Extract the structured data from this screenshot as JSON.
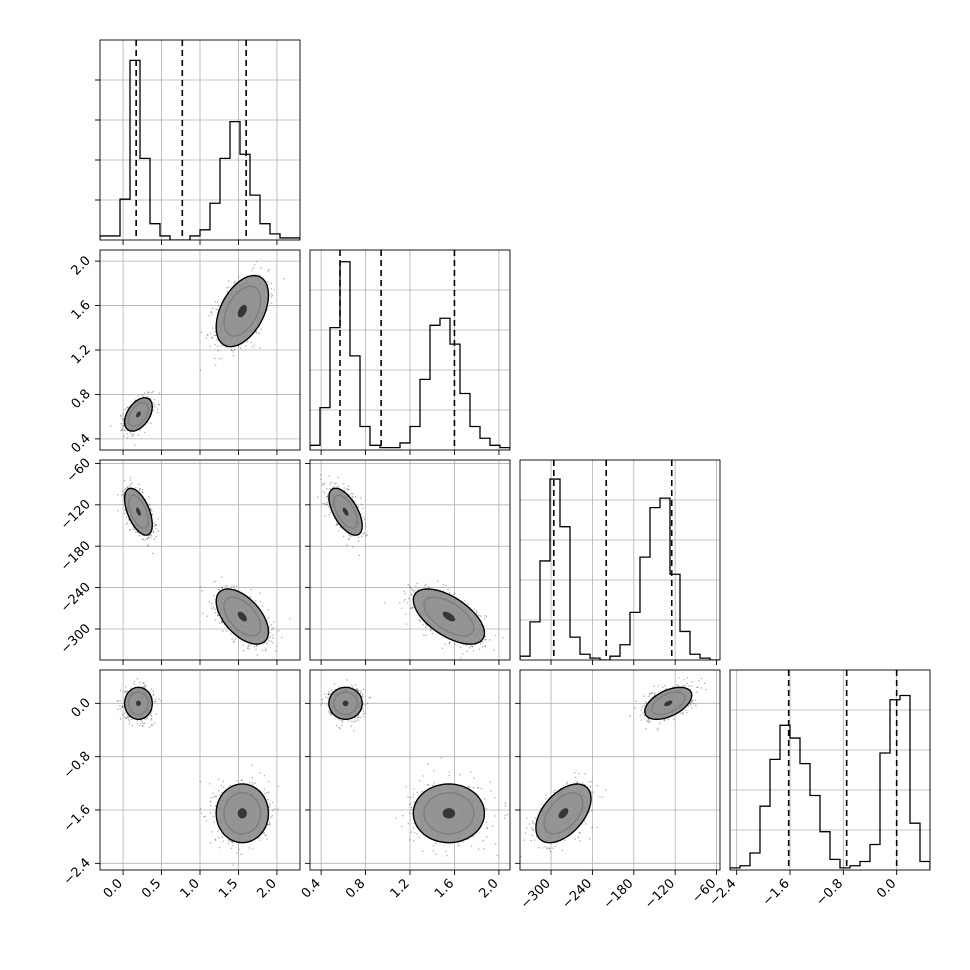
{
  "chart_data": {
    "type": "scatter",
    "title": "",
    "layout": "corner",
    "grid": true,
    "parameters": [
      {
        "range": [
          -0.3,
          2.3
        ],
        "ticks": [
          0.0,
          0.5,
          1.0,
          1.5,
          2.0
        ],
        "tick_labels": [
          "0.0",
          "0.5",
          "1.0",
          "1.5",
          "2.0"
        ]
      },
      {
        "range": [
          0.3,
          2.1
        ],
        "ticks": [
          0.4,
          0.8,
          1.2,
          1.6,
          2.0
        ],
        "tick_labels": [
          "0.4",
          "0.8",
          "1.2",
          "1.6",
          "2.0"
        ]
      },
      {
        "range": [
          -345,
          -55
        ],
        "ticks": [
          -300,
          -240,
          -180,
          -120,
          -60
        ],
        "tick_labels": [
          "−300",
          "−240",
          "−180",
          "−120",
          "−60"
        ]
      },
      {
        "range": [
          -2.5,
          0.5
        ],
        "ticks": [
          -2.4,
          -1.6,
          -0.8,
          0.0
        ],
        "tick_labels": [
          "−2.4",
          "−1.6",
          "−0.8",
          "0.0"
        ]
      }
    ],
    "histograms": [
      {
        "bins": [
          [
            -0.3,
            -0.17
          ],
          [
            -0.17,
            -0.04
          ],
          [
            -0.04,
            0.09
          ],
          [
            0.09,
            0.22
          ],
          [
            0.22,
            0.35
          ],
          [
            0.35,
            0.48
          ],
          [
            0.48,
            0.61
          ],
          [
            0.61,
            0.74
          ],
          [
            0.74,
            0.87
          ],
          [
            0.87,
            1.0
          ],
          [
            1.0,
            1.13
          ],
          [
            1.13,
            1.26
          ],
          [
            1.26,
            1.39
          ],
          [
            1.39,
            1.52
          ],
          [
            1.52,
            1.65
          ],
          [
            1.65,
            1.78
          ],
          [
            1.78,
            1.91
          ],
          [
            1.91,
            2.04
          ],
          [
            2.04,
            2.17
          ],
          [
            2.17,
            2.3
          ]
        ],
        "counts": [
          2,
          2,
          20,
          88,
          40,
          8,
          2,
          0,
          0,
          2,
          5,
          18,
          40,
          58,
          42,
          22,
          8,
          3,
          1,
          1
        ],
        "ymax": 98,
        "quantiles": [
          0.17,
          0.77,
          1.6
        ]
      },
      {
        "bins": [
          [
            0.3,
            0.39
          ],
          [
            0.39,
            0.48
          ],
          [
            0.48,
            0.57
          ],
          [
            0.57,
            0.66
          ],
          [
            0.66,
            0.75
          ],
          [
            0.75,
            0.84
          ],
          [
            0.84,
            0.93
          ],
          [
            0.93,
            1.02
          ],
          [
            1.02,
            1.11
          ],
          [
            1.11,
            1.2
          ],
          [
            1.2,
            1.29
          ],
          [
            1.29,
            1.38
          ],
          [
            1.38,
            1.47
          ],
          [
            1.47,
            1.56
          ],
          [
            1.56,
            1.65
          ],
          [
            1.65,
            1.74
          ],
          [
            1.74,
            1.83
          ],
          [
            1.83,
            1.92
          ],
          [
            1.92,
            2.01
          ],
          [
            2.01,
            2.1
          ]
        ],
        "counts": [
          2,
          18,
          52,
          80,
          40,
          10,
          2,
          1,
          1,
          3,
          10,
          30,
          53,
          56,
          45,
          24,
          10,
          5,
          2,
          1
        ],
        "ymax": 85,
        "quantiles": [
          0.57,
          0.94,
          1.6
        ]
      },
      {
        "bins": [
          [
            -345,
            -330.5
          ],
          [
            -330.5,
            -316
          ],
          [
            -316,
            -301.5
          ],
          [
            -301.5,
            -287
          ],
          [
            -287,
            -272.5
          ],
          [
            -272.5,
            -258
          ],
          [
            -258,
            -243.5
          ],
          [
            -243.5,
            -229
          ],
          [
            -229,
            -214.5
          ],
          [
            -214.5,
            -200
          ],
          [
            -200,
            -185.5
          ],
          [
            -185.5,
            -171
          ],
          [
            -171,
            -156.5
          ],
          [
            -156.5,
            -142
          ],
          [
            -142,
            -127.5
          ],
          [
            -127.5,
            -113
          ],
          [
            -113,
            -98.5
          ],
          [
            -98.5,
            -84
          ],
          [
            -84,
            -69.5
          ],
          [
            -69.5,
            -55
          ]
        ],
        "counts": [
          2,
          20,
          52,
          95,
          70,
          12,
          3,
          1,
          0,
          2,
          8,
          25,
          54,
          80,
          85,
          45,
          15,
          3,
          1,
          0
        ],
        "ymax": 105,
        "quantiles": [
          -296,
          -220,
          -125
        ]
      },
      {
        "bins": [
          [
            -2.5,
            -2.35
          ],
          [
            -2.35,
            -2.2
          ],
          [
            -2.2,
            -2.05
          ],
          [
            -2.05,
            -1.9
          ],
          [
            -1.9,
            -1.75
          ],
          [
            -1.75,
            -1.6
          ],
          [
            -1.6,
            -1.45
          ],
          [
            -1.45,
            -1.3
          ],
          [
            -1.3,
            -1.15
          ],
          [
            -1.15,
            -1.0
          ],
          [
            -1.0,
            -0.85
          ],
          [
            -0.85,
            -0.7
          ],
          [
            -0.7,
            -0.55
          ],
          [
            -0.55,
            -0.4
          ],
          [
            -0.4,
            -0.25
          ],
          [
            -0.25,
            -0.1
          ],
          [
            -0.1,
            0.05
          ],
          [
            0.05,
            0.2
          ],
          [
            0.2,
            0.35
          ],
          [
            0.35,
            0.5
          ]
        ],
        "counts": [
          1,
          2,
          8,
          30,
          52,
          68,
          62,
          50,
          35,
          18,
          5,
          1,
          2,
          4,
          12,
          55,
          80,
          82,
          22,
          4
        ],
        "ymax": 94,
        "quantiles": [
          -1.62,
          -0.75,
          0.0
        ]
      }
    ],
    "modes": [
      {
        "center": [
          0.2,
          0.62,
          -130,
          0.0
        ],
        "std": [
          0.09,
          0.075,
          17,
          0.12
        ]
      },
      {
        "center": [
          1.55,
          1.55,
          -282,
          -1.65
        ],
        "std": [
          0.17,
          0.16,
          20,
          0.22
        ]
      }
    ],
    "correlations": {
      "1-0": 0.45,
      "2-0": -0.55,
      "2-1": -0.6,
      "3-0": 0.0,
      "3-1": 0.0,
      "3-2": 0.5
    },
    "contour_levels_sigma": [
      0.8,
      1.4,
      2.0
    ]
  }
}
